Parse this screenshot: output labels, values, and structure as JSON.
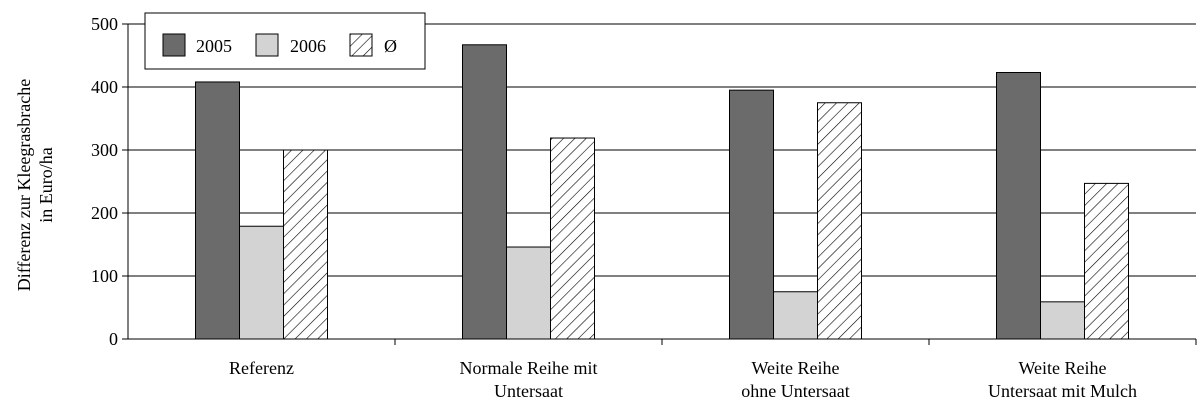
{
  "chart_data": {
    "type": "bar",
    "categories": [
      [
        "Referenz"
      ],
      [
        "Normale Reihe mit",
        "Untersaat"
      ],
      [
        "Weite Reihe",
        "ohne Untersaat"
      ],
      [
        "Weite Reihe",
        "Untersaat mit Mulch"
      ]
    ],
    "series": [
      {
        "name": "2005",
        "values": [
          408,
          467,
          395,
          423
        ],
        "color": "#6b6b6b",
        "pattern": "solid"
      },
      {
        "name": "2006",
        "values": [
          179,
          146,
          75,
          59
        ],
        "color": "#d3d3d3",
        "pattern": "solid"
      },
      {
        "name": "Ø",
        "values": [
          300,
          319,
          375,
          247
        ],
        "color": "#ffffff",
        "pattern": "hatch"
      }
    ],
    "ylabel": [
      "Differenz zur Kleegrasbrache",
      "in Euro/ha"
    ],
    "ylim": [
      0,
      500
    ],
    "yticks": [
      0,
      100,
      200,
      300,
      400,
      500
    ],
    "grid": true,
    "legend_position": "top-left"
  }
}
